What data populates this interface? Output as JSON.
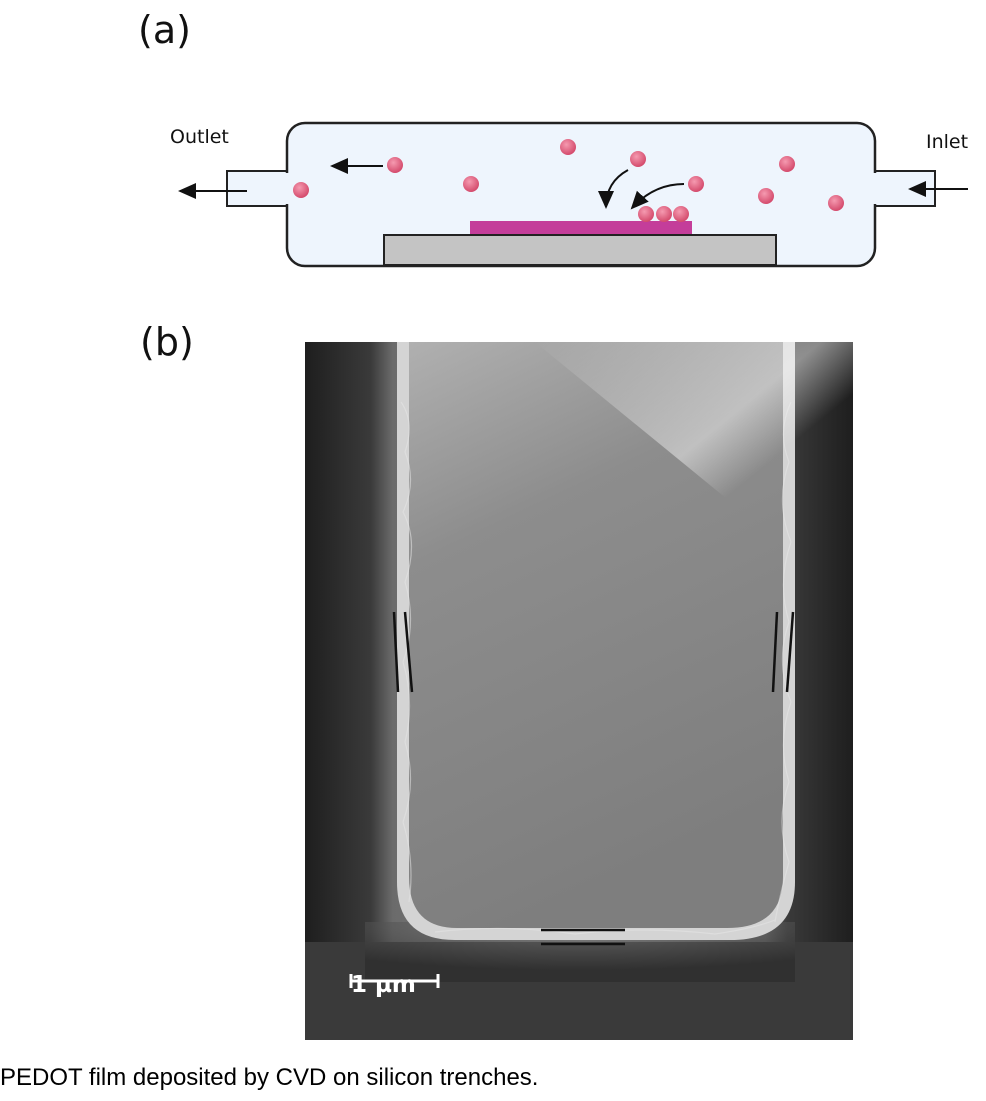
{
  "figure": {
    "panel_a_label": "(a)",
    "panel_b_label": "(b)",
    "caption": "PEDOT film deposited by CVD on silicon trenches."
  },
  "diagram": {
    "outlet_label": "Outlet",
    "inlet_label": "Inlet",
    "chamber_color": "#eef5fd",
    "particle_color": "#e05a7a",
    "film_color": "#c43d9a",
    "substrate_color": "#c4c4c4"
  },
  "micrograph": {
    "scale_bar_label": "1 µm"
  }
}
